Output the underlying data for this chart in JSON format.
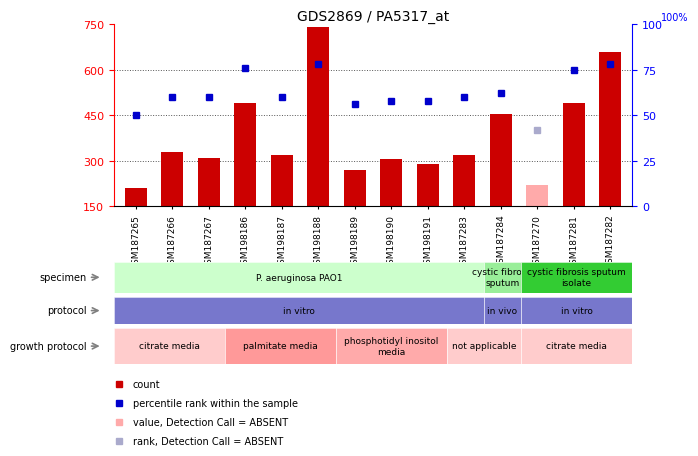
{
  "title": "GDS2869 / PA5317_at",
  "samples": [
    "GSM187265",
    "GSM187266",
    "GSM187267",
    "GSM198186",
    "GSM198187",
    "GSM198188",
    "GSM198189",
    "GSM198190",
    "GSM198191",
    "GSM187283",
    "GSM187284",
    "GSM187270",
    "GSM187281",
    "GSM187282"
  ],
  "counts": [
    210,
    330,
    310,
    490,
    320,
    740,
    270,
    305,
    290,
    320,
    455,
    220,
    490,
    660
  ],
  "ranks": [
    50,
    60,
    60,
    76,
    60,
    78,
    56,
    58,
    58,
    60,
    62,
    null,
    75,
    78
  ],
  "absent_value": [
    null,
    null,
    null,
    null,
    null,
    null,
    null,
    null,
    null,
    null,
    null,
    220,
    null,
    null
  ],
  "absent_rank": [
    null,
    null,
    null,
    null,
    null,
    null,
    null,
    null,
    null,
    null,
    null,
    42,
    null,
    null
  ],
  "ylim_left": [
    150,
    750
  ],
  "ylim_right": [
    0,
    100
  ],
  "yticks_left": [
    150,
    300,
    450,
    600,
    750
  ],
  "yticks_right": [
    0,
    25,
    50,
    75,
    100
  ],
  "bar_color": "#cc0000",
  "rank_color": "#0000cc",
  "absent_bar_color": "#ffaaaa",
  "absent_rank_color": "#aaaacc",
  "dotted_color": "#555555",
  "specimen_groups": [
    {
      "label": "P. aeruginosa PAO1",
      "start": 0,
      "end": 10,
      "color": "#ccffcc"
    },
    {
      "label": "cystic fibrosis\nsputum",
      "start": 10,
      "end": 11,
      "color": "#99ee99"
    },
    {
      "label": "cystic fibrosis sputum\nisolate",
      "start": 11,
      "end": 14,
      "color": "#33cc33"
    }
  ],
  "protocol_groups": [
    {
      "label": "in vitro",
      "start": 0,
      "end": 10,
      "color": "#7777cc"
    },
    {
      "label": "in vivo",
      "start": 10,
      "end": 11,
      "color": "#7777cc"
    },
    {
      "label": "in vitro",
      "start": 11,
      "end": 14,
      "color": "#7777cc"
    }
  ],
  "growth_groups": [
    {
      "label": "citrate media",
      "start": 0,
      "end": 3,
      "color": "#ffcccc"
    },
    {
      "label": "palmitate media",
      "start": 3,
      "end": 6,
      "color": "#ff9999"
    },
    {
      "label": "phosphotidyl inositol\nmedia",
      "start": 6,
      "end": 9,
      "color": "#ffaaaa"
    },
    {
      "label": "not applicable",
      "start": 9,
      "end": 11,
      "color": "#ffcccc"
    },
    {
      "label": "citrate media",
      "start": 11,
      "end": 14,
      "color": "#ffcccc"
    }
  ],
  "legend_items": [
    {
      "label": "count",
      "color": "#cc0000"
    },
    {
      "label": "percentile rank within the sample",
      "color": "#0000cc"
    },
    {
      "label": "value, Detection Call = ABSENT",
      "color": "#ffaaaa"
    },
    {
      "label": "rank, Detection Call = ABSENT",
      "color": "#aaaacc"
    }
  ],
  "row_labels": [
    "specimen",
    "protocol",
    "growth protocol"
  ]
}
